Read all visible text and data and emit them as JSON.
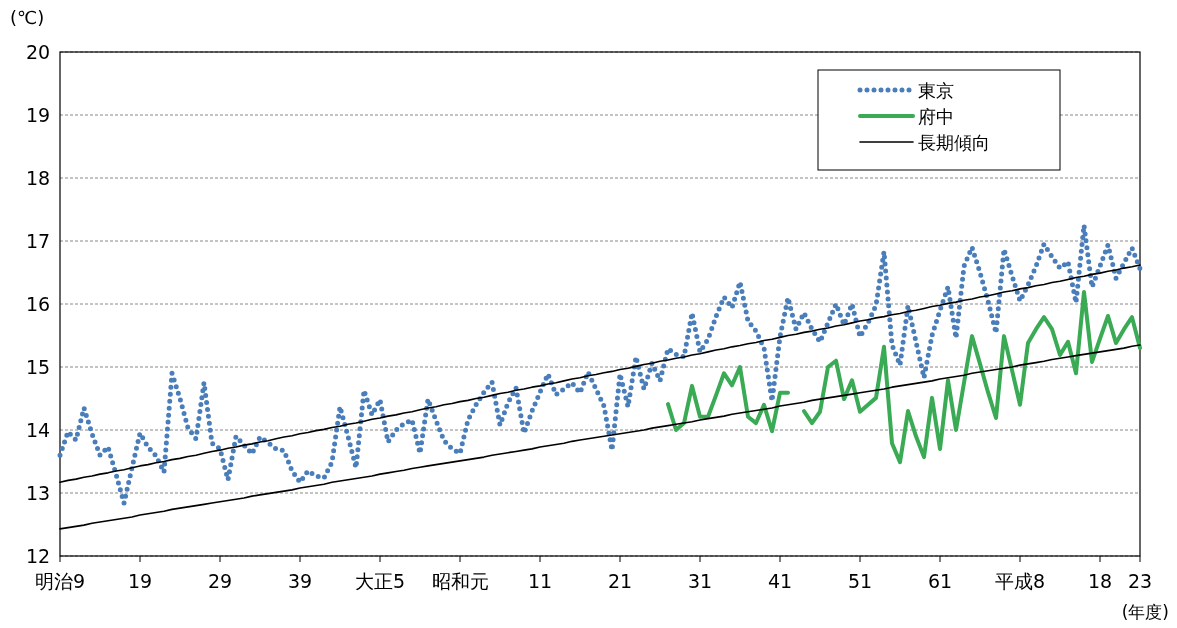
{
  "chart_data": {
    "type": "line",
    "ylabel": "(℃)",
    "xlabel": "(年度)",
    "ylim": [
      12,
      20
    ],
    "yticks": [
      12,
      13,
      14,
      15,
      16,
      17,
      18,
      19,
      20
    ],
    "categories": [
      "明治9",
      null,
      null,
      null,
      null,
      null,
      null,
      null,
      null,
      null,
      "19",
      null,
      null,
      null,
      null,
      null,
      null,
      null,
      null,
      null,
      "29",
      null,
      null,
      null,
      null,
      null,
      null,
      null,
      null,
      null,
      "39",
      null,
      null,
      null,
      null,
      null,
      null,
      null,
      null,
      null,
      "大正5",
      null,
      null,
      null,
      null,
      null,
      null,
      null,
      null,
      null,
      "昭和元",
      null,
      null,
      null,
      null,
      null,
      null,
      null,
      null,
      null,
      "11",
      null,
      null,
      null,
      null,
      null,
      null,
      null,
      null,
      null,
      "21",
      null,
      null,
      null,
      null,
      null,
      null,
      null,
      null,
      null,
      "31",
      null,
      null,
      null,
      null,
      null,
      null,
      null,
      null,
      null,
      "41",
      null,
      null,
      null,
      null,
      null,
      null,
      null,
      null,
      null,
      "51",
      null,
      null,
      null,
      null,
      null,
      null,
      null,
      null,
      null,
      "61",
      null,
      null,
      null,
      null,
      null,
      null,
      null,
      null,
      null,
      "平成8",
      null,
      null,
      null,
      null,
      null,
      null,
      null,
      null,
      null,
      "18",
      null,
      null,
      null,
      null,
      "23"
    ],
    "grid": "y",
    "legend": "top right",
    "series": [
      {
        "name": "東京",
        "color": "#4a7ebb",
        "line_style": "dotted",
        "values": [
          13.6,
          13.97,
          13.84,
          14.35,
          13.94,
          13.6,
          13.73,
          13.3,
          12.84,
          13.4,
          13.95,
          13.73,
          13.59,
          13.33,
          14.9,
          14.5,
          14.03,
          13.86,
          14.75,
          13.79,
          13.7,
          13.21,
          13.9,
          13.76,
          13.62,
          13.89,
          13.8,
          13.7,
          13.67,
          13.35,
          13.17,
          13.35,
          13.27,
          13.24,
          13.49,
          14.37,
          13.9,
          13.4,
          14.63,
          14.24,
          14.48,
          13.81,
          14.0,
          14.1,
          14.16,
          13.63,
          14.49,
          14.15,
          13.83,
          13.7,
          13.63,
          14.16,
          14.4,
          14.6,
          14.76,
          14.08,
          14.43,
          14.67,
          13.95,
          14.3,
          14.6,
          14.89,
          14.56,
          14.65,
          14.75,
          14.59,
          14.92,
          14.65,
          14.38,
          13.68,
          14.89,
          14.37,
          15.16,
          14.65,
          15.06,
          14.78,
          15.29,
          15.2,
          15.16,
          15.86,
          15.24,
          15.44,
          15.8,
          16.11,
          15.94,
          16.35,
          15.73,
          15.57,
          15.3,
          14.46,
          15.48,
          16.1,
          15.6,
          15.86,
          15.6,
          15.4,
          15.7,
          16.0,
          15.67,
          16.0,
          15.48,
          15.7,
          15.98,
          16.83,
          15.35,
          15.03,
          15.97,
          15.4,
          14.83,
          15.5,
          15.9,
          16.27,
          15.46,
          16.6,
          16.9,
          16.5,
          16.05,
          15.54,
          16.87,
          16.45,
          16.05,
          16.3,
          16.6,
          16.95,
          16.75,
          16.57,
          16.67,
          16.02,
          17.25,
          16.27,
          16.6,
          16.94,
          16.41,
          16.65,
          16.89,
          16.56
        ]
      },
      {
        "name": "府中",
        "color": "#3aaa54",
        "line_style": "solid",
        "values": [
          null,
          null,
          null,
          null,
          null,
          null,
          null,
          null,
          null,
          null,
          null,
          null,
          null,
          null,
          null,
          null,
          null,
          null,
          null,
          null,
          null,
          null,
          null,
          null,
          null,
          null,
          null,
          null,
          null,
          null,
          null,
          null,
          null,
          null,
          null,
          null,
          null,
          null,
          null,
          null,
          null,
          null,
          null,
          null,
          null,
          null,
          null,
          null,
          null,
          null,
          null,
          null,
          null,
          null,
          null,
          null,
          null,
          null,
          null,
          null,
          null,
          null,
          null,
          null,
          null,
          null,
          null,
          null,
          null,
          null,
          null,
          null,
          null,
          null,
          null,
          null,
          14.41,
          14.0,
          14.11,
          14.7,
          14.21,
          14.21,
          14.55,
          14.9,
          14.71,
          15.0,
          14.21,
          14.11,
          14.4,
          13.98,
          14.59,
          14.59,
          null,
          14.3,
          14.11,
          14.29,
          15.0,
          15.1,
          14.49,
          14.79,
          14.29,
          14.4,
          14.51,
          15.32,
          13.79,
          13.49,
          14.3,
          13.9,
          13.57,
          14.51,
          13.7,
          14.79,
          14.0,
          14.75,
          15.49,
          15.05,
          14.6,
          14.19,
          15.49,
          14.95,
          14.4,
          15.38,
          15.6,
          15.79,
          15.6,
          15.19,
          15.4,
          14.9,
          16.19,
          15.08,
          15.45,
          15.81,
          15.38,
          15.6,
          15.79,
          15.3
        ]
      },
      {
        "name": "長期傾向",
        "color": "#000000",
        "line_style": "solid",
        "values": [
          13.17,
          13.2,
          13.22,
          13.25,
          13.27,
          13.3,
          13.32,
          13.35,
          13.37,
          13.4,
          13.43,
          13.45,
          13.48,
          13.5,
          13.53,
          13.55,
          13.58,
          13.6,
          13.63,
          13.66,
          13.68,
          13.71,
          13.73,
          13.76,
          13.78,
          13.81,
          13.83,
          13.86,
          13.89,
          13.91,
          13.94,
          13.96,
          13.99,
          14.01,
          14.04,
          14.06,
          14.09,
          14.11,
          14.14,
          14.17,
          14.19,
          14.22,
          14.24,
          14.27,
          14.29,
          14.32,
          14.35,
          14.37,
          14.4,
          14.42,
          14.45,
          14.47,
          14.5,
          14.52,
          14.55,
          14.58,
          14.6,
          14.63,
          14.65,
          14.68,
          14.7,
          14.73,
          14.75,
          14.78,
          14.81,
          14.83,
          14.86,
          14.88,
          14.91,
          14.93,
          14.96,
          14.98,
          15.01,
          15.04,
          15.06,
          15.09,
          15.11,
          15.14,
          15.16,
          15.19,
          15.21,
          15.24,
          15.27,
          15.29,
          15.32,
          15.34,
          15.37,
          15.39,
          15.42,
          15.44,
          15.47,
          15.5,
          15.52,
          15.55,
          15.57,
          15.6,
          15.62,
          15.65,
          15.67,
          15.7,
          15.73,
          15.75,
          15.78,
          15.8,
          15.83,
          15.85,
          15.88,
          15.9,
          15.93,
          15.96,
          15.98,
          16.01,
          16.03,
          16.06,
          16.08,
          16.11,
          16.13,
          16.16,
          16.19,
          16.21,
          16.24,
          16.26,
          16.29,
          16.31,
          16.34,
          16.36,
          16.39,
          16.42,
          16.44,
          16.47,
          16.49,
          16.52,
          16.54,
          16.57,
          16.59,
          16.62
        ]
      },
      {
        "color": "#000000",
        "line_style": "solid",
        "values": [
          12.43,
          12.45,
          12.47,
          12.49,
          12.52,
          12.54,
          12.56,
          12.58,
          12.6,
          12.62,
          12.65,
          12.67,
          12.69,
          12.71,
          12.74,
          12.76,
          12.78,
          12.8,
          12.82,
          12.84,
          12.86,
          12.88,
          12.9,
          12.92,
          12.95,
          12.97,
          12.99,
          13.01,
          13.03,
          13.05,
          13.08,
          13.1,
          13.12,
          13.14,
          13.17,
          13.19,
          13.21,
          13.23,
          13.25,
          13.27,
          13.3,
          13.32,
          13.34,
          13.36,
          13.39,
          13.41,
          13.43,
          13.45,
          13.47,
          13.49,
          13.51,
          13.53,
          13.55,
          13.57,
          13.6,
          13.62,
          13.64,
          13.66,
          13.68,
          13.7,
          13.73,
          13.75,
          13.77,
          13.79,
          13.82,
          13.84,
          13.86,
          13.88,
          13.9,
          13.92,
          13.94,
          13.96,
          13.98,
          14.0,
          14.03,
          14.05,
          14.07,
          14.09,
          14.11,
          14.13,
          14.16,
          14.18,
          14.2,
          14.22,
          14.25,
          14.27,
          14.29,
          14.31,
          14.33,
          14.35,
          14.38,
          14.4,
          14.42,
          14.44,
          14.47,
          14.49,
          14.51,
          14.53,
          14.55,
          14.57,
          14.59,
          14.61,
          14.63,
          14.65,
          14.68,
          14.7,
          14.72,
          14.74,
          14.76,
          14.78,
          14.81,
          14.83,
          14.85,
          14.87,
          14.9,
          14.92,
          14.94,
          14.96,
          14.98,
          15.0,
          15.03,
          15.05,
          15.07,
          15.09,
          15.12,
          15.14,
          15.16,
          15.18,
          15.2,
          15.22,
          15.24,
          15.26,
          15.28,
          15.3,
          15.33,
          15.35
        ]
      }
    ]
  }
}
